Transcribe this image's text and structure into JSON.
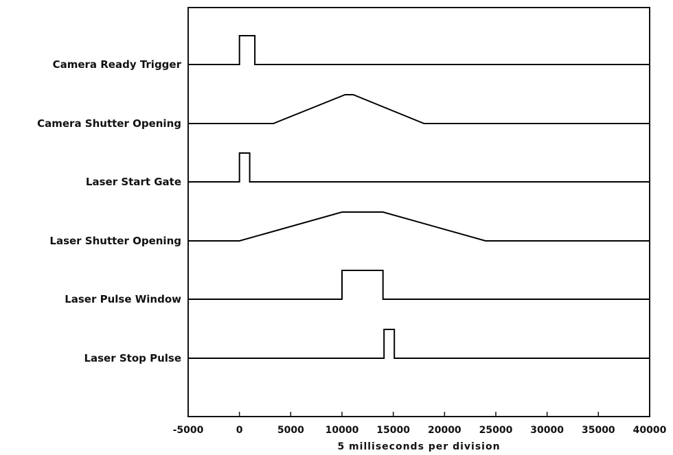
{
  "chart_data": {
    "type": "line",
    "title": "",
    "xlabel": "5 milliseconds per division",
    "ylabel": "",
    "xlim": [
      -5000,
      40000
    ],
    "xticks": [
      -5000,
      0,
      5000,
      10000,
      15000,
      20000,
      25000,
      30000,
      35000,
      40000
    ],
    "grid": false,
    "legend": "none",
    "line_color": "#000000",
    "series": [
      {
        "name": "Camera Ready Trigger",
        "points": [
          [
            -5000,
            0
          ],
          [
            0,
            0
          ],
          [
            0,
            1
          ],
          [
            1500,
            1
          ],
          [
            1500,
            0
          ],
          [
            40000,
            0
          ]
        ]
      },
      {
        "name": "Camera Shutter Opening",
        "points": [
          [
            -5000,
            0
          ],
          [
            3300,
            0
          ],
          [
            10300,
            1
          ],
          [
            11100,
            1
          ],
          [
            18000,
            0
          ],
          [
            40000,
            0
          ]
        ]
      },
      {
        "name": "Laser Start Gate",
        "points": [
          [
            -5000,
            0
          ],
          [
            0,
            0
          ],
          [
            0,
            1
          ],
          [
            1000,
            1
          ],
          [
            1000,
            0
          ],
          [
            40000,
            0
          ]
        ]
      },
      {
        "name": "Laser Shutter Opening",
        "points": [
          [
            -5000,
            0
          ],
          [
            0,
            0
          ],
          [
            10000,
            1
          ],
          [
            14000,
            1
          ],
          [
            24000,
            0
          ],
          [
            40000,
            0
          ]
        ]
      },
      {
        "name": "Laser Pulse Window",
        "points": [
          [
            -5000,
            0
          ],
          [
            10000,
            0
          ],
          [
            10000,
            1
          ],
          [
            14000,
            1
          ],
          [
            14000,
            0
          ],
          [
            40000,
            0
          ]
        ]
      },
      {
        "name": "Laser Stop Pulse",
        "points": [
          [
            -5000,
            0
          ],
          [
            14100,
            0
          ],
          [
            14100,
            1
          ],
          [
            15100,
            1
          ],
          [
            15100,
            0
          ],
          [
            40000,
            0
          ]
        ]
      }
    ]
  }
}
